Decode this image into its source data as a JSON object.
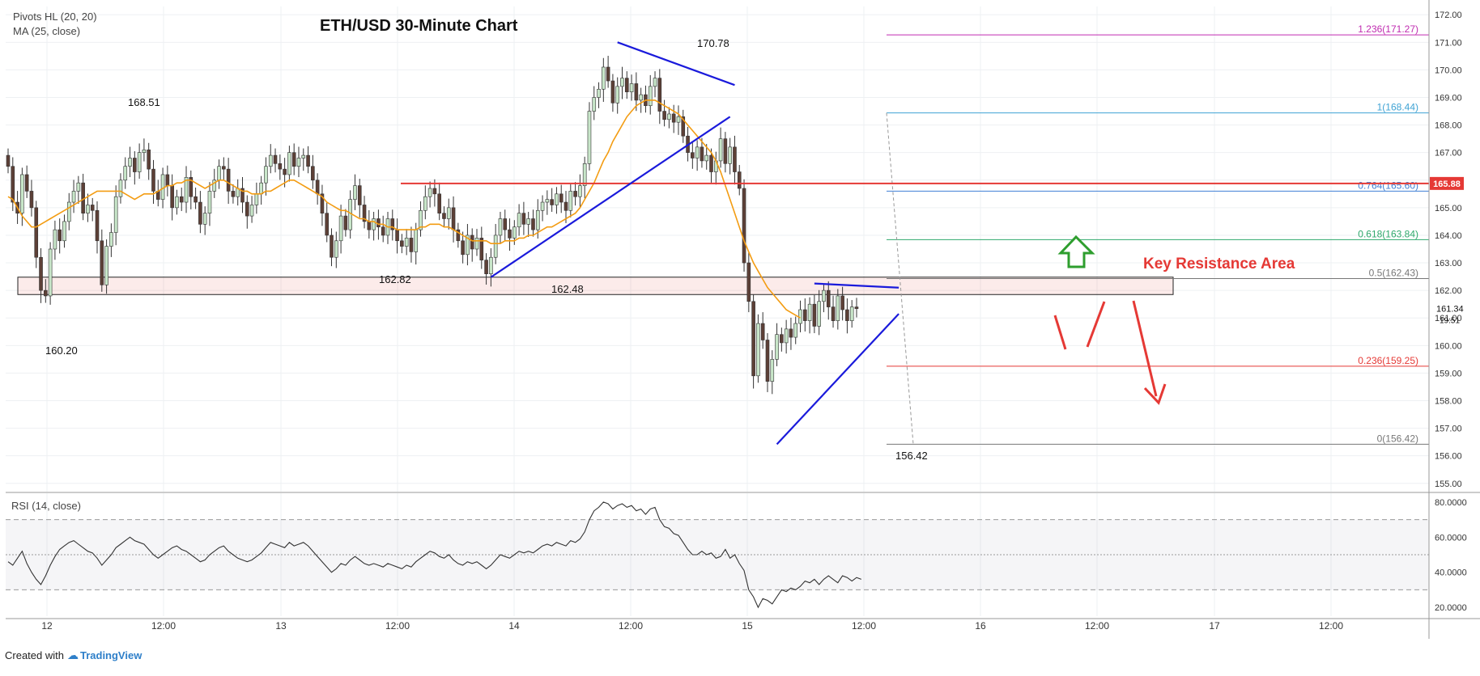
{
  "title": "ETH/USD 30-Minute Chart",
  "indicators": {
    "pivots": "Pivots HL (20, 20)",
    "ma": "MA (25, close)",
    "rsi": "RSI (14, close)"
  },
  "footer": {
    "created_with": "Created with",
    "brand": "TradingView"
  },
  "colors": {
    "up": "#c8e6c9",
    "down": "#5d4037",
    "wick": "#333333",
    "ma": "#f39c12",
    "trend": "#1a1adb",
    "red": "#e53935",
    "green": "#2e9e2e",
    "rsi": "#333333"
  },
  "chart_data": [
    {
      "type": "candlestick",
      "title": "ETH/USD 30-Minute Chart",
      "ylim": [
        154.7,
        172.3
      ],
      "yticks": [
        "155.00",
        "156.00",
        "157.00",
        "158.00",
        "159.00",
        "160.00",
        "161.00",
        "162.00",
        "163.00",
        "164.00",
        "165.00",
        "166.00",
        "167.00",
        "168.00",
        "169.00",
        "170.00",
        "171.00",
        "172.00"
      ],
      "xticks": [
        "12",
        "12:00",
        "13",
        "12:00",
        "14",
        "12:00",
        "15",
        "12:00",
        "16",
        "12:00",
        "17",
        "12:00"
      ],
      "price_label": "165.88",
      "current_price": "161.34",
      "countdown": "19:51",
      "pivots": [
        {
          "label": "160.20",
          "value": 160.2
        },
        {
          "label": "168.51",
          "value": 168.51
        },
        {
          "label": "162.82",
          "value": 162.82
        },
        {
          "label": "162.48",
          "value": 162.48
        },
        {
          "label": "170.78",
          "value": 170.78
        },
        {
          "label": "156.42",
          "value": 156.42
        }
      ],
      "fibonacci": [
        {
          "label": "1.236(171.27)",
          "value": 171.27,
          "color": "#c02bb0"
        },
        {
          "label": "1(168.44)",
          "value": 168.44,
          "color": "#3fa3d4"
        },
        {
          "label": "0.764(165.60)",
          "value": 165.6,
          "color": "#3f7fd4"
        },
        {
          "label": "0.618(163.84)",
          "value": 163.84,
          "color": "#2ea86b"
        },
        {
          "label": "0.5(162.43)",
          "value": 162.43,
          "color": "#777777"
        },
        {
          "label": "0.236(159.25)",
          "value": 159.25,
          "color": "#e53935"
        },
        {
          "label": "0(156.42)",
          "value": 156.42,
          "color": "#777777"
        }
      ],
      "resistance_line": 165.88,
      "zone": [
        161.85,
        162.48
      ],
      "annotation": "Key Resistance Area",
      "series": [
        {
          "name": "ETH/USD",
          "values": [
            166.5,
            165.2,
            164.8,
            166.2,
            165.6,
            165.0,
            163.2,
            162.0,
            161.8,
            163.5,
            164.2,
            163.8,
            164.5,
            165.2,
            165.6,
            165.9,
            164.8,
            165.1,
            164.9,
            163.8,
            162.2,
            163.6,
            164.1,
            165.4,
            166.0,
            166.5,
            166.8,
            166.3,
            167.0,
            167.1,
            166.4,
            165.6,
            165.3,
            166.2,
            165.8,
            165.0,
            165.4,
            165.2,
            166.1,
            165.4,
            165.2,
            164.4,
            164.8,
            165.6,
            166.0,
            166.5,
            166.4,
            165.6,
            165.4,
            165.7,
            165.2,
            164.7,
            165.1,
            165.5,
            165.9,
            166.5,
            166.9,
            166.6,
            166.4,
            166.2,
            167.0,
            166.5,
            166.8,
            166.9,
            166.5,
            166.0,
            165.5,
            164.8,
            164.0,
            163.2,
            163.8,
            164.7,
            164.2,
            165.3,
            165.8,
            165.1,
            164.5,
            164.2,
            164.6,
            164.3,
            164.0,
            164.6,
            164.2,
            163.8,
            163.6,
            163.9,
            163.4,
            164.2,
            164.9,
            165.4,
            165.7,
            165.5,
            164.8,
            164.6,
            165.0,
            164.2,
            163.8,
            163.3,
            164.0,
            163.5,
            163.9,
            163.1,
            162.6,
            163.2,
            164.0,
            164.6,
            164.2,
            163.9,
            164.3,
            164.8,
            164.4,
            164.6,
            164.2,
            164.9,
            165.2,
            165.3,
            165.1,
            165.5,
            165.2,
            164.9,
            165.6,
            165.4,
            165.8,
            166.6,
            168.5,
            169.0,
            169.3,
            170.1,
            169.6,
            168.8,
            169.4,
            169.7,
            169.2,
            169.5,
            168.9,
            169.1,
            168.7,
            169.4,
            169.7,
            168.5,
            168.2,
            168.4,
            168.1,
            168.3,
            167.6,
            167.0,
            166.8,
            167.2,
            166.7,
            166.9,
            166.3,
            166.7,
            167.5,
            166.6,
            167.2,
            166.3,
            165.7,
            163.0,
            161.6,
            158.9,
            160.8,
            160.2,
            158.7,
            159.5,
            160.4,
            160.1,
            160.6,
            160.3,
            160.8,
            161.3,
            160.9,
            161.5,
            160.7,
            161.6,
            162.0,
            161.4,
            160.9,
            161.8,
            161.3,
            160.9,
            161.4,
            161.34
          ]
        },
        {
          "name": "MA (25, close)",
          "values": [
            165.4,
            165.3,
            165.0,
            164.7,
            164.5,
            164.3,
            164.3,
            164.4,
            164.5,
            164.6,
            164.7,
            164.8,
            164.9,
            165.0,
            165.1,
            165.2,
            165.3,
            165.4,
            165.5,
            165.6,
            165.6,
            165.6,
            165.6,
            165.6,
            165.6,
            165.5,
            165.4,
            165.3,
            165.4,
            165.5,
            165.5,
            165.5,
            165.6,
            165.7,
            165.8,
            165.8,
            165.9,
            165.9,
            166.0,
            166.0,
            165.9,
            165.8,
            165.7,
            165.8,
            165.9,
            166.0,
            166.0,
            165.9,
            165.8,
            165.7,
            165.6,
            165.6,
            165.5,
            165.5,
            165.5,
            165.6,
            165.6,
            165.7,
            165.8,
            165.9,
            166.0,
            166.0,
            165.9,
            165.8,
            165.7,
            165.6,
            165.5,
            165.4,
            165.2,
            165.1,
            165.0,
            164.9,
            164.9,
            164.8,
            164.7,
            164.6,
            164.6,
            164.5,
            164.5,
            164.4,
            164.4,
            164.3,
            164.3,
            164.2,
            164.2,
            164.2,
            164.2,
            164.2,
            164.3,
            164.3,
            164.4,
            164.4,
            164.4,
            164.3,
            164.3,
            164.2,
            164.1,
            164.0,
            163.9,
            163.8,
            163.8,
            163.8,
            163.8,
            163.7,
            163.7,
            163.7,
            163.8,
            163.8,
            163.8,
            163.9,
            163.9,
            164.0,
            164.0,
            164.1,
            164.2,
            164.3,
            164.3,
            164.4,
            164.5,
            164.6,
            164.7,
            164.8,
            165.0,
            165.3,
            165.6,
            165.9,
            166.3,
            166.7,
            167.0,
            167.4,
            167.7,
            168.0,
            168.3,
            168.5,
            168.7,
            168.8,
            168.9,
            168.9,
            168.9,
            168.8,
            168.7,
            168.6,
            168.5,
            168.4,
            168.2,
            168.0,
            167.8,
            167.6,
            167.4,
            167.2,
            167.0,
            166.7,
            166.3,
            165.8,
            165.3,
            164.8,
            164.3,
            163.8,
            163.4,
            163.0,
            162.7,
            162.4,
            162.1,
            161.9,
            161.7,
            161.5,
            161.3,
            161.2,
            161.1,
            161.0
          ]
        }
      ]
    },
    {
      "type": "line",
      "title": "RSI (14, close)",
      "ylim": [
        15,
        85
      ],
      "yticks": [
        "20.0000",
        "40.0000",
        "60.0000",
        "80.0000"
      ],
      "bands": [
        30,
        70
      ],
      "midline": 50,
      "series": [
        {
          "name": "RSI (14, close)",
          "values": [
            46,
            44,
            48,
            52,
            45,
            40,
            36,
            33,
            38,
            44,
            49,
            53,
            55,
            57,
            58,
            56,
            54,
            52,
            51,
            48,
            44,
            47,
            50,
            54,
            56,
            58,
            60,
            58,
            57,
            56,
            53,
            50,
            48,
            50,
            52,
            54,
            55,
            53,
            52,
            50,
            48,
            46,
            47,
            50,
            52,
            54,
            55,
            52,
            50,
            48,
            47,
            46,
            47,
            49,
            51,
            54,
            57,
            56,
            55,
            54,
            57,
            55,
            56,
            57,
            55,
            52,
            49,
            46,
            43,
            40,
            42,
            45,
            44,
            47,
            49,
            47,
            45,
            44,
            45,
            44,
            43,
            45,
            44,
            43,
            42,
            44,
            43,
            46,
            48,
            50,
            52,
            51,
            49,
            48,
            50,
            47,
            45,
            44,
            46,
            45,
            46,
            44,
            42,
            44,
            47,
            50,
            49,
            48,
            50,
            52,
            51,
            52,
            51,
            53,
            55,
            56,
            55,
            57,
            56,
            55,
            58,
            57,
            59,
            63,
            70,
            75,
            77,
            80,
            79,
            76,
            78,
            79,
            77,
            78,
            75,
            76,
            73,
            76,
            77,
            70,
            66,
            65,
            62,
            61,
            57,
            53,
            50,
            50,
            52,
            50,
            51,
            48,
            49,
            53,
            48,
            50,
            45,
            41,
            30,
            26,
            20,
            25,
            24,
            22,
            26,
            30,
            29,
            31,
            30,
            32,
            35,
            34,
            36,
            33,
            36,
            38,
            36,
            34,
            38,
            37,
            35,
            37,
            36
          ]
        }
      ]
    }
  ]
}
